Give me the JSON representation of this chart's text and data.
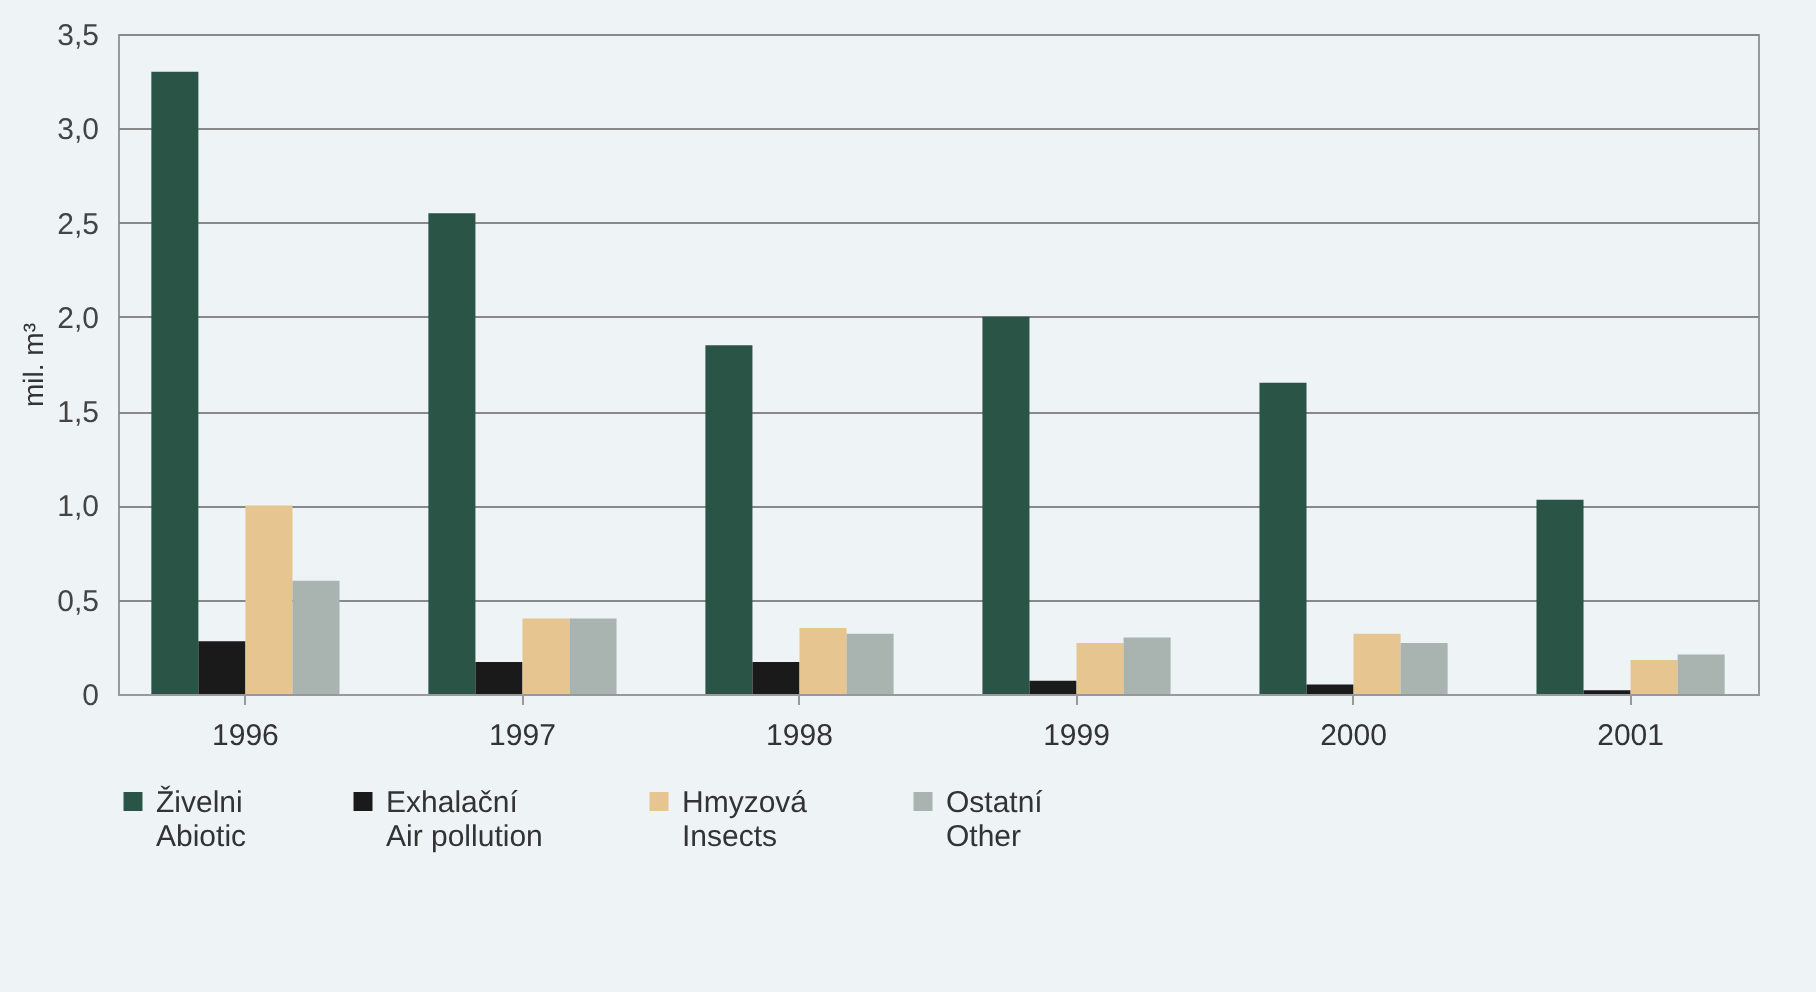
{
  "chart_data": {
    "type": "bar",
    "ylabel": "mil. m³",
    "categories": [
      "1996",
      "1997",
      "1998",
      "1999",
      "2000",
      "2001"
    ],
    "series": [
      {
        "name": "Živelni\nAbiotic",
        "color": "#2a5446",
        "values": [
          3.3,
          2.55,
          1.85,
          2.0,
          1.65,
          1.03
        ]
      },
      {
        "name": "Exhalační\nAir pollution",
        "color": "#1a1a1a",
        "values": [
          0.28,
          0.17,
          0.17,
          0.07,
          0.05,
          0.02
        ]
      },
      {
        "name": "Hmyzová\nInsects",
        "color": "#e6c590",
        "values": [
          1.0,
          0.4,
          0.35,
          0.27,
          0.32,
          0.18
        ]
      },
      {
        "name": "Ostatní\nOther",
        "color": "#a9b3b0",
        "values": [
          0.6,
          0.4,
          0.32,
          0.3,
          0.27,
          0.21
        ]
      }
    ],
    "ylim": [
      0,
      3.5
    ],
    "yticks": [
      0,
      {
        "value": 0.5,
        "label": "0,5"
      },
      {
        "value": 1,
        "label": "1,0"
      },
      {
        "value": 1.5,
        "label": "1,5"
      },
      {
        "value": 2,
        "label": "2,0"
      },
      {
        "value": 2.5,
        "label": "2,5"
      },
      {
        "value": 3,
        "label": "3,0"
      },
      {
        "value": 3.5,
        "label": "3,5"
      }
    ],
    "grid": "y",
    "legend": "bottom"
  }
}
